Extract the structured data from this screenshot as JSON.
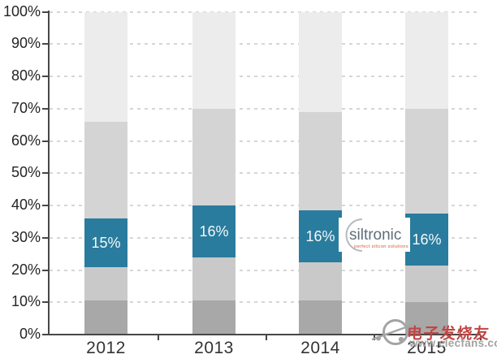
{
  "chart_data": {
    "type": "bar",
    "stacked": true,
    "title": "",
    "categories": [
      "2012",
      "2013",
      "2014",
      "2015"
    ],
    "series": [
      {
        "name": "bottom-dark-gray",
        "color": "#a8a8a8",
        "values": [
          10.5,
          10.5,
          10.5,
          10
        ]
      },
      {
        "name": "lower-mid-gray",
        "color": "#c9c9c9",
        "values": [
          10.5,
          13.5,
          12,
          11.5
        ]
      },
      {
        "name": "siltronic-teal-highlight",
        "color": "#2a7c9e",
        "values": [
          15,
          16,
          16,
          16
        ],
        "data_labels": [
          "15%",
          "16%",
          "16%",
          "16%"
        ],
        "label_color": "#f4f9fb"
      },
      {
        "name": "upper-mid-gray",
        "color": "#d4d4d4",
        "values": [
          30,
          30,
          30.5,
          32.5
        ]
      },
      {
        "name": "top-light-gray",
        "color": "#ececec",
        "values": [
          34,
          30,
          31,
          30
        ]
      }
    ],
    "xlabel": "",
    "ylabel": "",
    "ylim": [
      0,
      100
    ],
    "ytick_labels": [
      "0%",
      "10%",
      "20%",
      "30%",
      "40%",
      "50%",
      "60%",
      "70%",
      "80%",
      "90%",
      "100%"
    ],
    "grid": {
      "horizontal": true,
      "style": "dashed",
      "color": "#d6d6d6"
    },
    "legend": "none"
  },
  "watermarks": {
    "siltronic": {
      "brand": "siltronic",
      "tagline": "perfect silicon solutions",
      "brand_color": "#5f6e7c",
      "tagline_color": "#d0542e"
    },
    "elecfans": {
      "brand": "电子发烧友",
      "url": "www.elecfans.com",
      "brand_color": "#c04543",
      "url_color": "#a2a2a2"
    }
  }
}
